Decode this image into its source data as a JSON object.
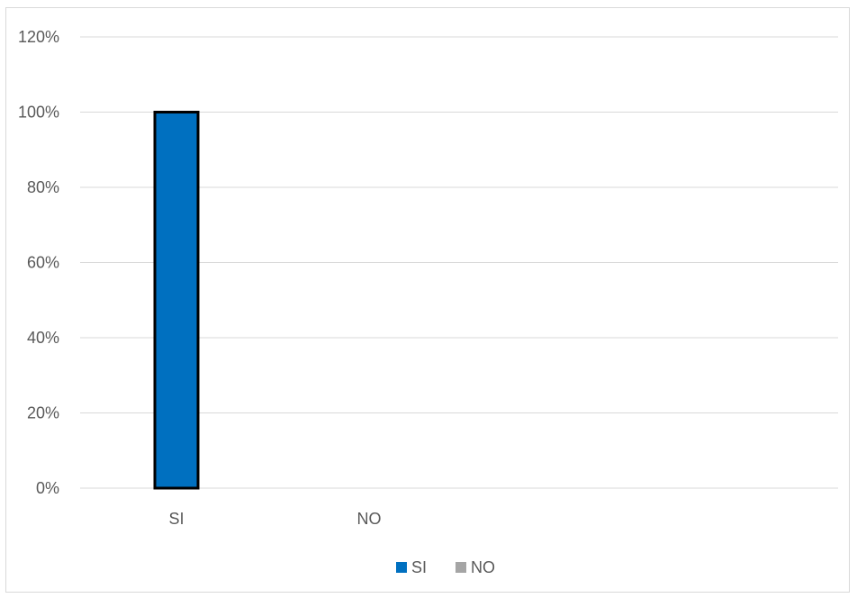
{
  "chart_data": {
    "type": "bar",
    "categories": [
      "SI",
      "NO"
    ],
    "series": [
      {
        "name": "SI",
        "values": [
          1.0,
          null
        ]
      },
      {
        "name": "NO",
        "values": [
          null,
          0.0
        ]
      }
    ],
    "ylim": [
      0,
      1.2
    ],
    "yticks": [
      0,
      0.2,
      0.4,
      0.6,
      0.8,
      1.0,
      1.2
    ],
    "ytick_labels": [
      "0%",
      "20%",
      "40%",
      "60%",
      "80%",
      "100%",
      "120%"
    ],
    "grid": true,
    "legend": {
      "position": "bottom",
      "entries": [
        "SI",
        "NO"
      ]
    },
    "colors": {
      "SI": "#0070c0",
      "NO": "#a5a5a5",
      "bar_border": "#000000",
      "grid": "#d9d9d9"
    }
  }
}
